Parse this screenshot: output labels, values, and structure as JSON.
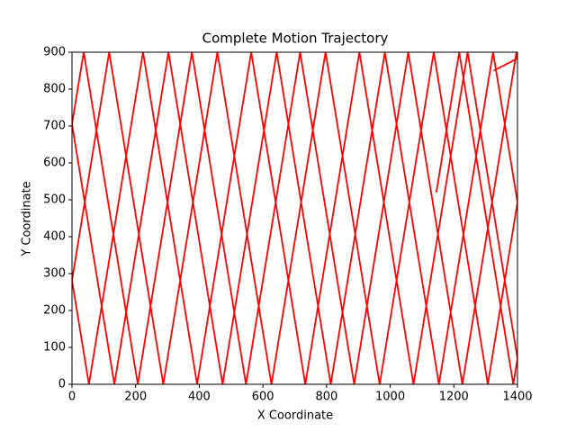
{
  "chart_data": {
    "type": "line",
    "title": "Complete Motion Trajectory",
    "x_label": "X Coordinate",
    "y_label": "Y Coordinate",
    "series": [
      {
        "color": "#ff0000",
        "x": [
          1145,
          1216.8,
          1386.8,
          1400,
          1243.2,
          1073.2,
          903.2,
          733.2,
          563.2,
          393.2,
          223.2,
          53.2,
          0,
          116.8,
          286.8,
          456.8,
          626.8,
          796.8,
          966.8,
          1136.8,
          1306.8,
          1400,
          1323.2,
          1153.2,
          983.2,
          813.2,
          643.2,
          473.2,
          303.2,
          133.2,
          0,
          36.8,
          206.8,
          376.8,
          546.8,
          716.8,
          886.8,
          1056.8,
          1226.8,
          1396.8,
          1400,
          1325
        ],
        "values": [
          520,
          900,
          0,
          69.9,
          900,
          0,
          900,
          0,
          900,
          0,
          900,
          0,
          281.6,
          900,
          0,
          900,
          0,
          900,
          0,
          900,
          0,
          493.4,
          900,
          0,
          900,
          0,
          900,
          0,
          900,
          0,
          705.2,
          900,
          0,
          900,
          0,
          900,
          0,
          900,
          0,
          900,
          883.1,
          850
        ]
      }
    ],
    "xlim": [
      0,
      1400
    ],
    "ylim": [
      0,
      900
    ],
    "xticks": [
      0,
      200,
      400,
      600,
      800,
      1000,
      1200,
      1400
    ],
    "yticks": [
      0,
      100,
      200,
      300,
      400,
      500,
      600,
      700,
      800,
      900
    ]
  }
}
